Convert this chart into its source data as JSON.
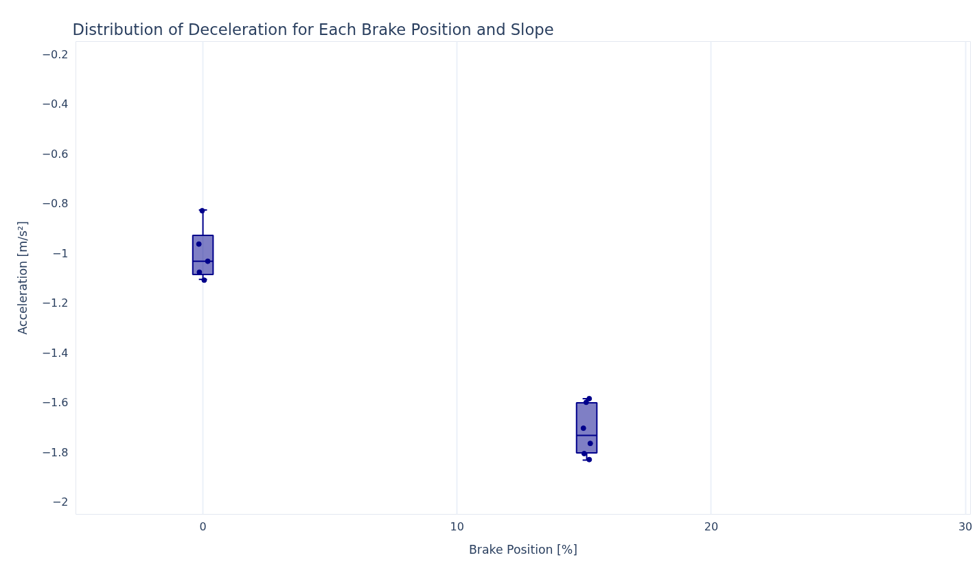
{
  "chart_data": {
    "type": "box",
    "title": "Distribution of Deceleration for Each Brake Position and Slope",
    "xlabel": "Brake Position [%]",
    "ylabel": "Acceleration [m/s²]",
    "xlim": [
      -5,
      30.2
    ],
    "xticks": [
      0,
      10,
      20,
      30
    ],
    "ylim": [
      -2.05,
      -0.15
    ],
    "yticks": [
      {
        "value": -0.2,
        "label": "−0.2"
      },
      {
        "value": -0.4,
        "label": "−0.4"
      },
      {
        "value": -0.6,
        "label": "−0.6"
      },
      {
        "value": -0.8,
        "label": "−0.8"
      },
      {
        "value": -1,
        "label": "−1"
      },
      {
        "value": -1.2,
        "label": "−1.2"
      },
      {
        "value": -1.4,
        "label": "−1.4"
      },
      {
        "value": -1.6,
        "label": "−1.6"
      },
      {
        "value": -1.8,
        "label": "−1.8"
      },
      {
        "value": -2,
        "label": "−2"
      }
    ],
    "grid": "x",
    "series": [
      {
        "x": [
          0,
          15.1
        ],
        "color": "#00008b",
        "boxes": [
          {
            "low": -1.106,
            "q1": -1.086,
            "median": -1.033,
            "q3": -0.929,
            "high": -0.827
          },
          {
            "low": -1.832,
            "q1": -1.803,
            "median": -1.733,
            "q3": -1.602,
            "high": -1.585
          }
        ]
      },
      {
        "type": "scatter",
        "marker": "circle",
        "color": "#00008b",
        "x": [
          -0.03,
          -0.16,
          0.19,
          -0.14,
          0.05,
          15.2,
          15.08,
          14.97,
          15.24,
          15.0,
          15.2
        ],
        "values": [
          -0.83,
          -0.964,
          -1.033,
          -1.077,
          -1.109,
          -1.585,
          -1.6,
          -1.704,
          -1.765,
          -1.806,
          -1.83
        ]
      }
    ]
  }
}
